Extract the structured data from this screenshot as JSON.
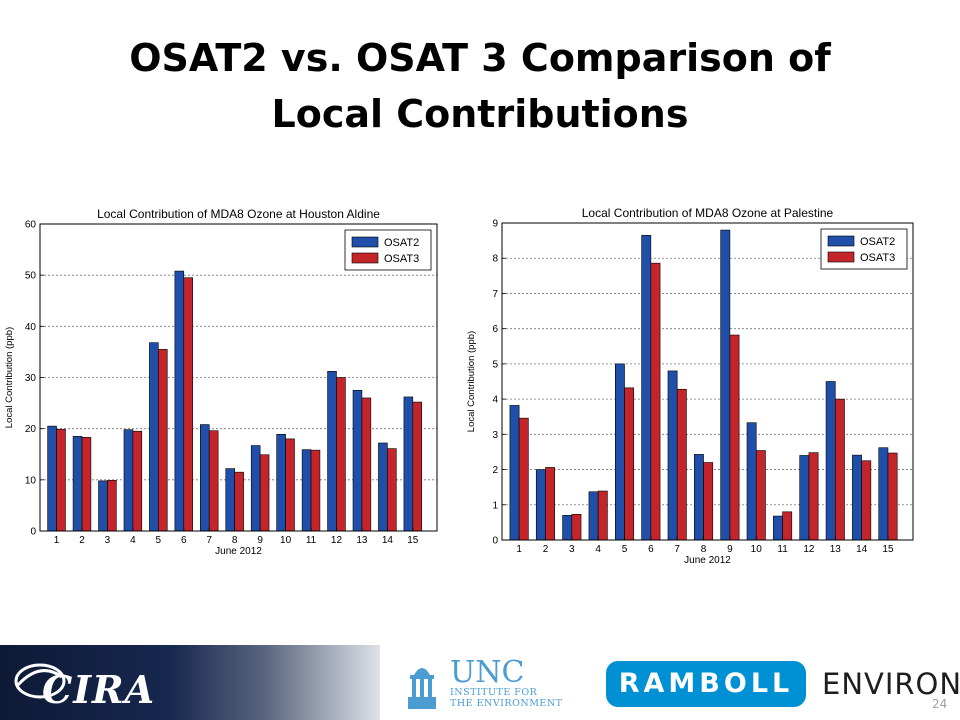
{
  "slide": {
    "title_line1": "OSAT2 vs. OSAT 3 Comparison of",
    "title_line2": "Local Contributions",
    "page_number": "24"
  },
  "colors": {
    "osat2": "#1f4fa8",
    "osat3": "#c4252a",
    "edge": "#000000"
  },
  "footer": {
    "cira_label": "CIRA",
    "unc_label": "UNC",
    "unc_sub": "INSTITUTE FOR\nTHE ENVIRONMENT",
    "ramboll_label": "RAMBOLL",
    "environ_label": "ENVIRON",
    "icons": [
      "cira-logo-icon",
      "unc-bell-tower-icon",
      "ramboll-logo-icon"
    ]
  },
  "chart_data": [
    {
      "type": "bar",
      "title": "Local Contribution of MDA8 Ozone at Houston Aldine",
      "xlabel": "June 2012",
      "ylabel": "Local Contribution (ppb)",
      "categories": [
        "1",
        "2",
        "3",
        "4",
        "5",
        "6",
        "7",
        "8",
        "9",
        "10",
        "11",
        "12",
        "13",
        "14",
        "15"
      ],
      "ylim": [
        0,
        60
      ],
      "yticks": [
        "0",
        "10",
        "20",
        "30",
        "40",
        "50",
        "60"
      ],
      "grid": true,
      "legend": "top-right",
      "series": [
        {
          "name": "OSAT2",
          "values": [
            20.5,
            18.5,
            9.8,
            19.8,
            36.8,
            50.8,
            20.8,
            12.2,
            16.7,
            18.9,
            15.9,
            31.2,
            27.5,
            17.2,
            26.2
          ]
        },
        {
          "name": "OSAT3",
          "values": [
            19.9,
            18.3,
            9.9,
            19.5,
            35.5,
            49.5,
            19.6,
            11.5,
            14.9,
            18.0,
            15.8,
            30.0,
            26.0,
            16.1,
            25.2
          ]
        }
      ]
    },
    {
      "type": "bar",
      "title": "Local Contribution of MDA8 Ozone at Palestine",
      "xlabel": "June 2012",
      "ylabel": "Local Contribution (ppb)",
      "categories": [
        "1",
        "2",
        "3",
        "4",
        "5",
        "6",
        "7",
        "8",
        "9",
        "10",
        "11",
        "12",
        "13",
        "14",
        "15"
      ],
      "ylim": [
        0,
        9
      ],
      "yticks": [
        "0",
        "1",
        "2",
        "3",
        "4",
        "5",
        "6",
        "7",
        "8",
        "9"
      ],
      "grid": true,
      "legend": "top-right",
      "series": [
        {
          "name": "OSAT2",
          "values": [
            3.82,
            2.0,
            0.7,
            1.37,
            5.0,
            8.65,
            4.8,
            2.43,
            8.8,
            3.33,
            0.68,
            2.4,
            4.5,
            2.41,
            2.62
          ]
        },
        {
          "name": "OSAT3",
          "values": [
            3.46,
            2.06,
            0.73,
            1.39,
            4.32,
            7.86,
            4.28,
            2.2,
            5.82,
            2.54,
            0.8,
            2.48,
            4.0,
            2.25,
            2.47
          ]
        }
      ]
    }
  ]
}
